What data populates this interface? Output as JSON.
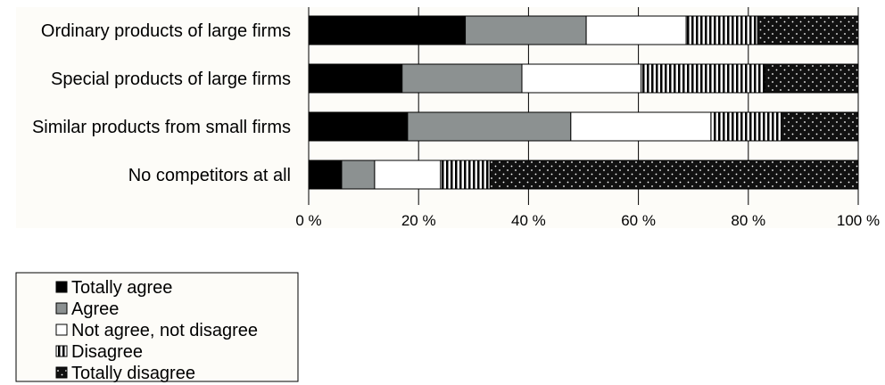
{
  "chart_data": {
    "type": "bar",
    "orientation": "horizontal",
    "stacked": true,
    "percent": true,
    "categories": [
      "Ordinary products of large firms",
      "Special products of large firms",
      "Similar products from small firms",
      "No competitors at all"
    ],
    "series": [
      {
        "name": "Totally agree",
        "color": "#000000",
        "pattern": "solid",
        "values": [
          28.5,
          17,
          18,
          6
        ]
      },
      {
        "name": "Agree",
        "color": "#8c9191",
        "pattern": "solid",
        "values": [
          22,
          21.8,
          29.7,
          6
        ]
      },
      {
        "name": "Not agree, not disagree",
        "color": "#ffffff",
        "pattern": "solid",
        "values": [
          18.2,
          21.7,
          25.5,
          12
        ]
      },
      {
        "name": "Disagree",
        "color": "#000000",
        "pattern": "vertical-stripes",
        "values": [
          13,
          22.5,
          12.8,
          9
        ]
      },
      {
        "name": "Totally disagree",
        "color": "#000000",
        "pattern": "dots",
        "values": [
          18.3,
          17,
          14,
          67
        ]
      }
    ],
    "x_ticks": [
      "0 %",
      "20 %",
      "40 %",
      "60 %",
      "80 %",
      "100 %"
    ],
    "xlim": [
      0,
      100
    ],
    "grid": true,
    "legend_position": "bottom-left"
  }
}
